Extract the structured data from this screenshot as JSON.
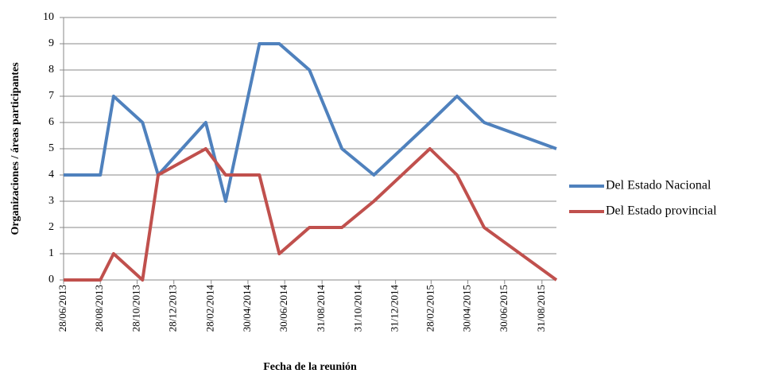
{
  "chart_data": {
    "type": "line",
    "y_label": "Organizaciones / áreas participantes",
    "x_label": "Fecha de la reunión",
    "x": [
      "28/06/2013",
      "28/08/2013",
      "19/09/2013",
      "06/11/2013",
      "02/12/2013",
      "19/02/2014",
      "24/03/2014",
      "19/05/2014",
      "21/06/2014",
      "10/08/2014",
      "03/10/2014",
      "25/11/2014",
      "26/02/2015",
      "12/04/2015",
      "27/05/2015",
      "24/09/2015"
    ],
    "series": [
      {
        "name": "Del Estado Nacional",
        "color": "#4f81bd",
        "values": [
          4,
          4,
          7,
          6,
          4,
          6,
          3,
          9,
          9,
          8,
          5,
          4,
          6,
          7,
          6,
          5
        ]
      },
      {
        "name": "Del Estado provincial",
        "color": "#c0504d",
        "values": [
          0,
          0,
          1,
          0,
          4,
          5,
          4,
          4,
          1,
          2,
          2,
          3,
          5,
          4,
          2,
          0
        ]
      }
    ],
    "xlim": [
      "28/06/2013",
      "24/09/2015"
    ],
    "xticks": [
      "28/06/2013",
      "28/08/2013",
      "28/10/2013",
      "28/12/2013",
      "28/02/2014",
      "30/04/2014",
      "30/06/2014",
      "31/08/2014",
      "31/10/2014",
      "31/12/2014",
      "28/02/2015",
      "30/04/2015",
      "30/06/2015",
      "31/08/2015"
    ],
    "ylim": [
      0,
      10
    ],
    "yticks": [
      0,
      1,
      2,
      3,
      4,
      5,
      6,
      7,
      8,
      9,
      10
    ],
    "grid": true,
    "legend": "right"
  }
}
